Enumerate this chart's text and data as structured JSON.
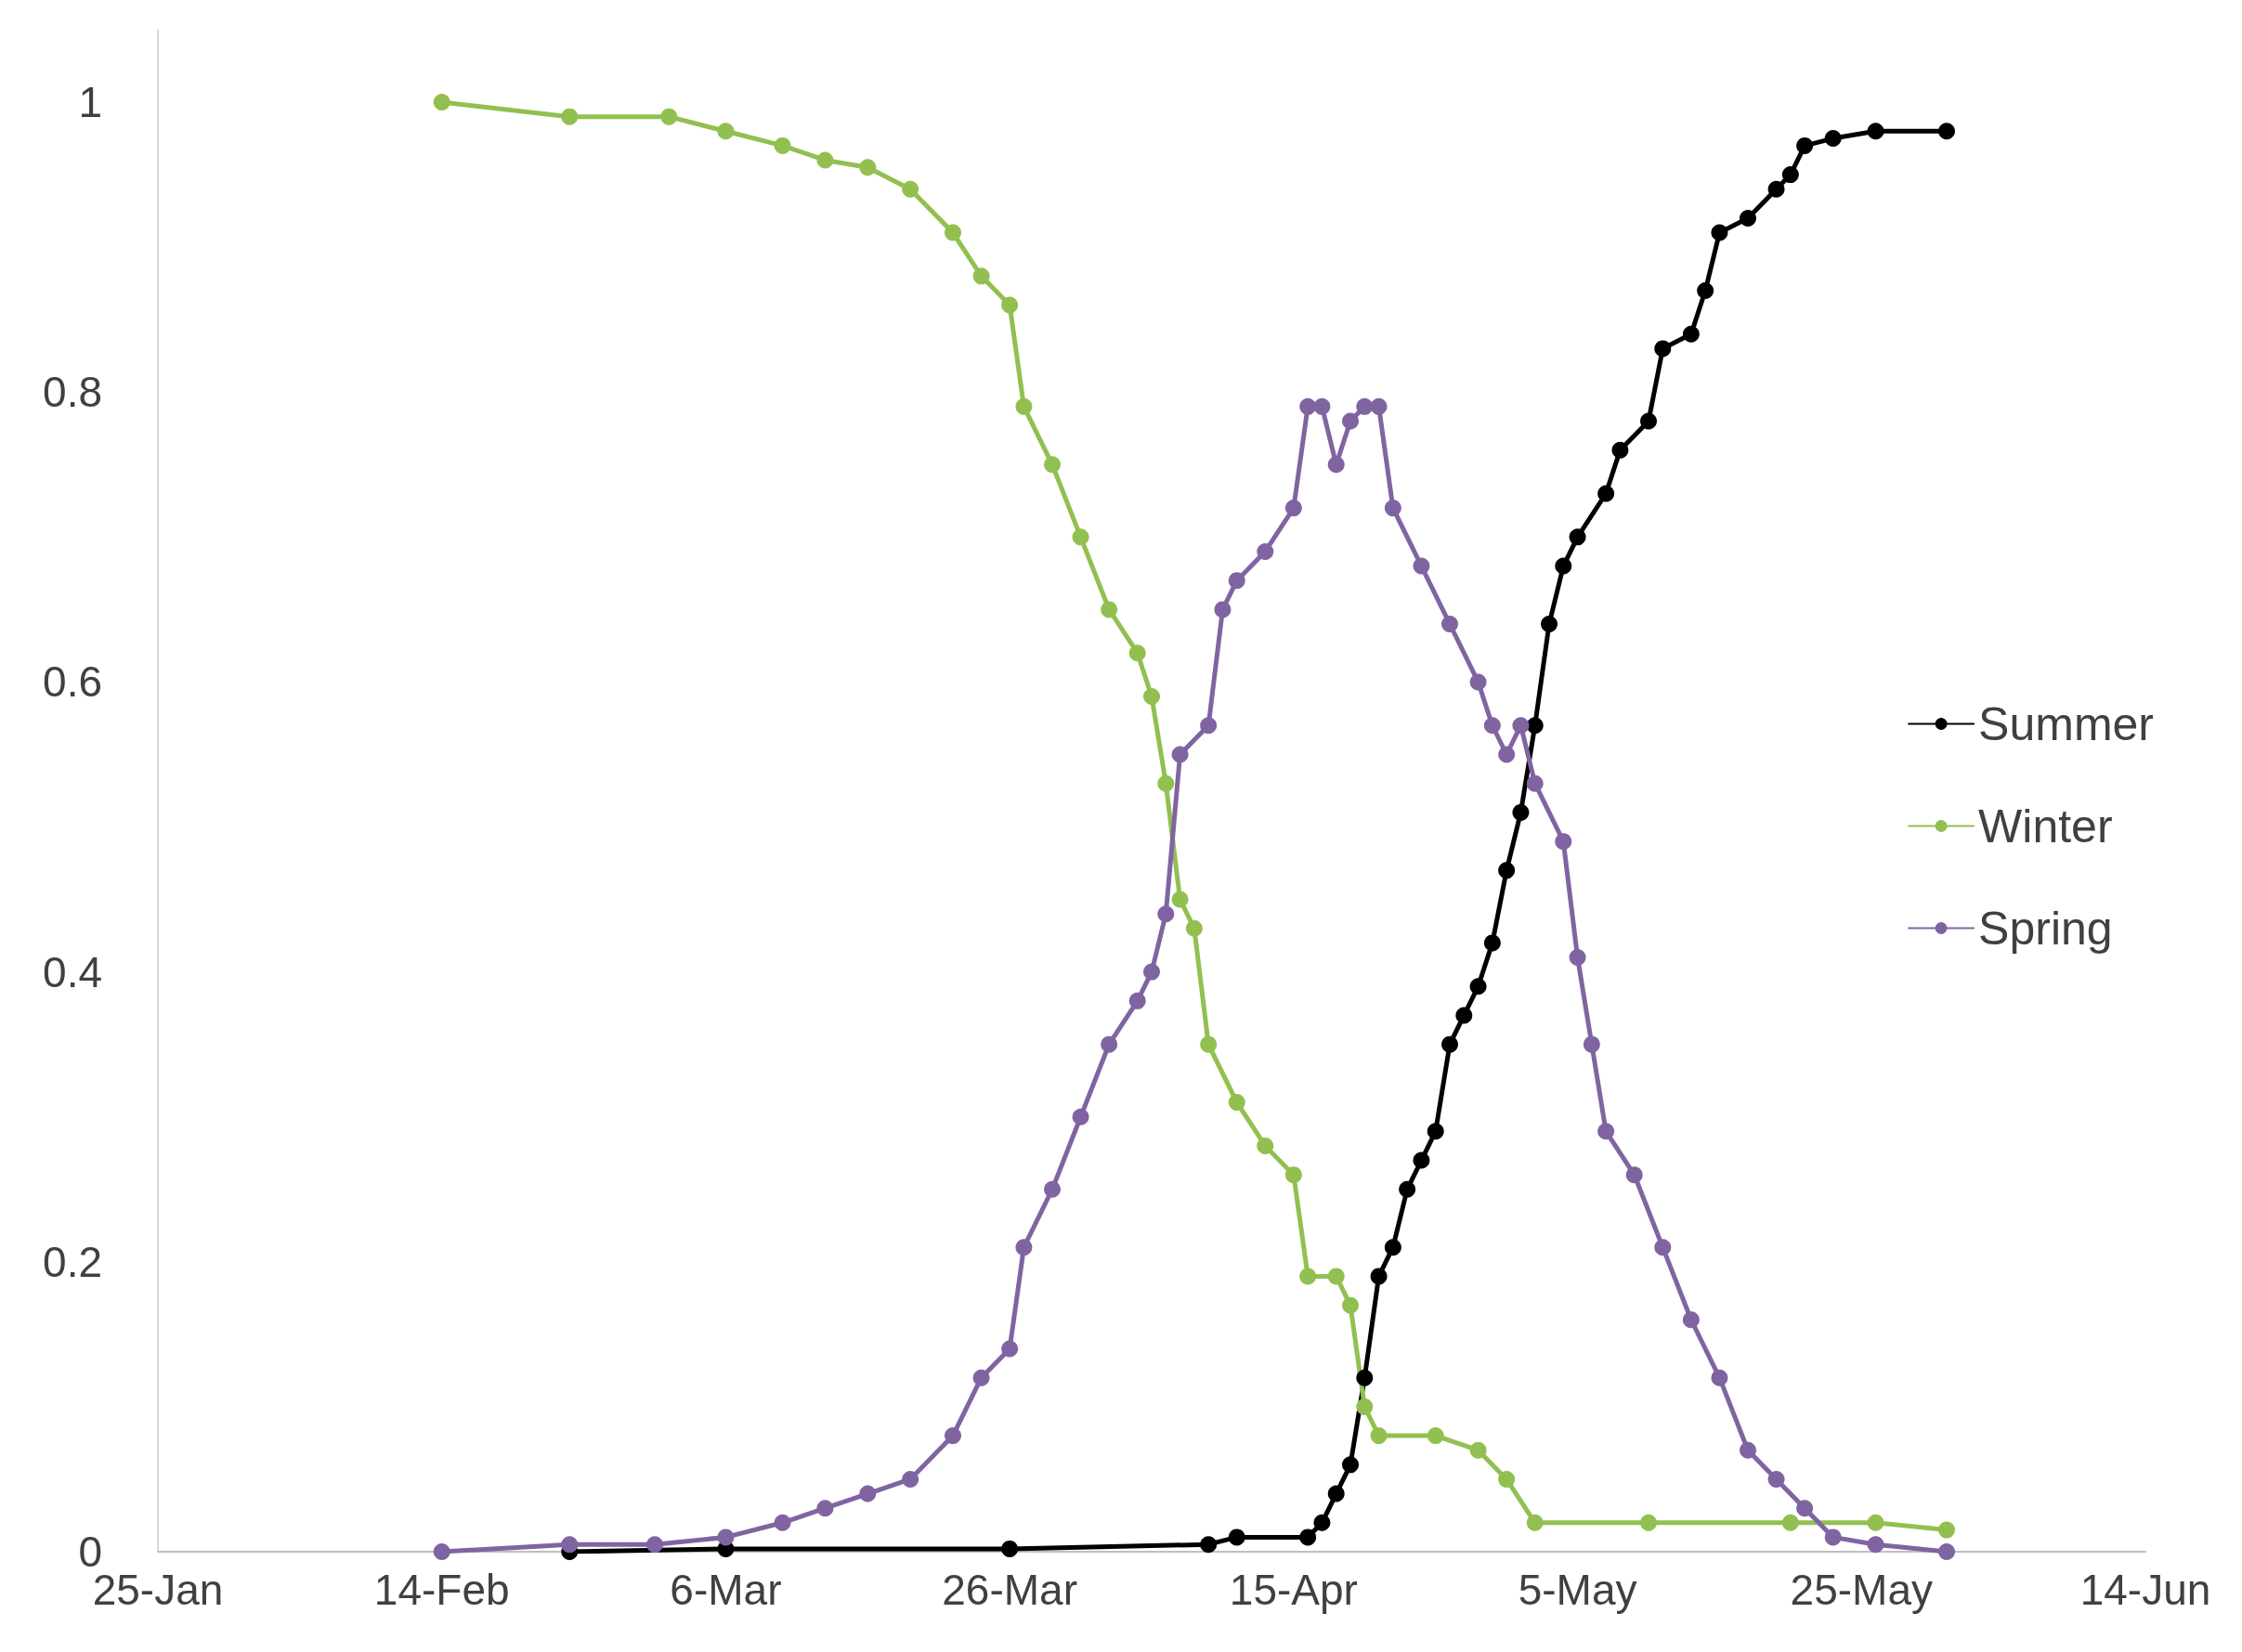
{
  "chart_data": {
    "type": "line",
    "xlim": [
      "--01-25",
      "--06-14"
    ],
    "xticks": [
      {
        "value": "--01-25",
        "label": "25-Jan"
      },
      {
        "value": "--02-14",
        "label": "14-Feb"
      },
      {
        "value": "--03-06",
        "label": "6-Mar"
      },
      {
        "value": "--03-26",
        "label": "26-Mar"
      },
      {
        "value": "--04-15",
        "label": "15-Apr"
      },
      {
        "value": "--05-05",
        "label": "5-May"
      },
      {
        "value": "--05-25",
        "label": "25-May"
      },
      {
        "value": "--06-14",
        "label": "14-Jun"
      }
    ],
    "ylim": [
      0,
      1.05
    ],
    "yticks": [
      0,
      0.2,
      0.4,
      0.6,
      0.8,
      1
    ],
    "grid": false,
    "legend": "right",
    "marker": "circle",
    "line_style": "solid",
    "series": [
      {
        "name": "Summer",
        "color": "#000000",
        "x": [
          "--02-23",
          "--03-06",
          "--03-26",
          "--04-09",
          "--04-11",
          "--04-16",
          "--04-17",
          "--04-18",
          "--04-19",
          "--04-20",
          "--04-21",
          "--04-22",
          "--04-23",
          "--04-24",
          "--04-25",
          "--04-26",
          "--04-27",
          "--04-28",
          "--04-29",
          "--04-30",
          "--05-01",
          "--05-02",
          "--05-03",
          "--05-04",
          "--05-05",
          "--05-07",
          "--05-08",
          "--05-10",
          "--05-11",
          "--05-13",
          "--05-14",
          "--05-15",
          "--05-17",
          "--05-19",
          "--05-20",
          "--05-21",
          "--05-23",
          "--05-26",
          "--05-31"
        ],
        "values": [
          0,
          0.002,
          0.002,
          0.005,
          0.01,
          0.01,
          0.02,
          0.04,
          0.06,
          0.12,
          0.19,
          0.21,
          0.25,
          0.27,
          0.29,
          0.35,
          0.37,
          0.39,
          0.42,
          0.47,
          0.51,
          0.57,
          0.64,
          0.68,
          0.7,
          0.73,
          0.76,
          0.78,
          0.83,
          0.84,
          0.87,
          0.91,
          0.92,
          0.94,
          0.95,
          0.97,
          0.975,
          0.98,
          0.98
        ]
      },
      {
        "name": "Winter",
        "color": "#92c050",
        "x": [
          "--02-14",
          "--02-23",
          "--03-02",
          "--03-06",
          "--03-10",
          "--03-13",
          "--03-16",
          "--03-19",
          "--03-22",
          "--03-24",
          "--03-26",
          "--03-27",
          "--03-29",
          "--03-31",
          "--04-02",
          "--04-04",
          "--04-05",
          "--04-06",
          "--04-07",
          "--04-08",
          "--04-09",
          "--04-11",
          "--04-13",
          "--04-15",
          "--04-16",
          "--04-18",
          "--04-19",
          "--04-20",
          "--04-21",
          "--04-25",
          "--04-28",
          "--04-30",
          "--05-02",
          "--05-10",
          "--05-20",
          "--05-26",
          "--05-31"
        ],
        "values": [
          1,
          0.99,
          0.99,
          0.98,
          0.97,
          0.96,
          0.955,
          0.94,
          0.91,
          0.88,
          0.86,
          0.79,
          0.75,
          0.7,
          0.65,
          0.62,
          0.59,
          0.53,
          0.45,
          0.43,
          0.35,
          0.31,
          0.28,
          0.26,
          0.19,
          0.19,
          0.17,
          0.1,
          0.08,
          0.08,
          0.07,
          0.05,
          0.02,
          0.02,
          0.02,
          0.02,
          0.015
        ]
      },
      {
        "name": "Spring",
        "color": "#8064a2",
        "x": [
          "--02-14",
          "--02-23",
          "--03-01",
          "--03-06",
          "--03-10",
          "--03-13",
          "--03-16",
          "--03-19",
          "--03-22",
          "--03-24",
          "--03-26",
          "--03-27",
          "--03-29",
          "--03-31",
          "--04-02",
          "--04-04",
          "--04-05",
          "--04-06",
          "--04-07",
          "--04-09",
          "--04-10",
          "--04-11",
          "--04-13",
          "--04-15",
          "--04-16",
          "--04-17",
          "--04-18",
          "--04-19",
          "--04-20",
          "--04-21",
          "--04-22",
          "--04-24",
          "--04-26",
          "--04-28",
          "--04-29",
          "--04-30",
          "--05-01",
          "--05-02",
          "--05-04",
          "--05-05",
          "--05-06",
          "--05-07",
          "--05-09",
          "--05-11",
          "--05-13",
          "--05-15",
          "--05-17",
          "--05-19",
          "--05-21",
          "--05-23",
          "--05-26",
          "--05-31"
        ],
        "values": [
          0,
          0.005,
          0.005,
          0.01,
          0.02,
          0.03,
          0.04,
          0.05,
          0.08,
          0.12,
          0.14,
          0.21,
          0.25,
          0.3,
          0.35,
          0.38,
          0.4,
          0.44,
          0.55,
          0.57,
          0.65,
          0.67,
          0.69,
          0.72,
          0.79,
          0.79,
          0.75,
          0.78,
          0.79,
          0.79,
          0.72,
          0.68,
          0.64,
          0.6,
          0.57,
          0.55,
          0.57,
          0.53,
          0.49,
          0.41,
          0.35,
          0.29,
          0.26,
          0.21,
          0.16,
          0.12,
          0.07,
          0.05,
          0.03,
          0.01,
          0.005,
          0
        ]
      }
    ]
  }
}
